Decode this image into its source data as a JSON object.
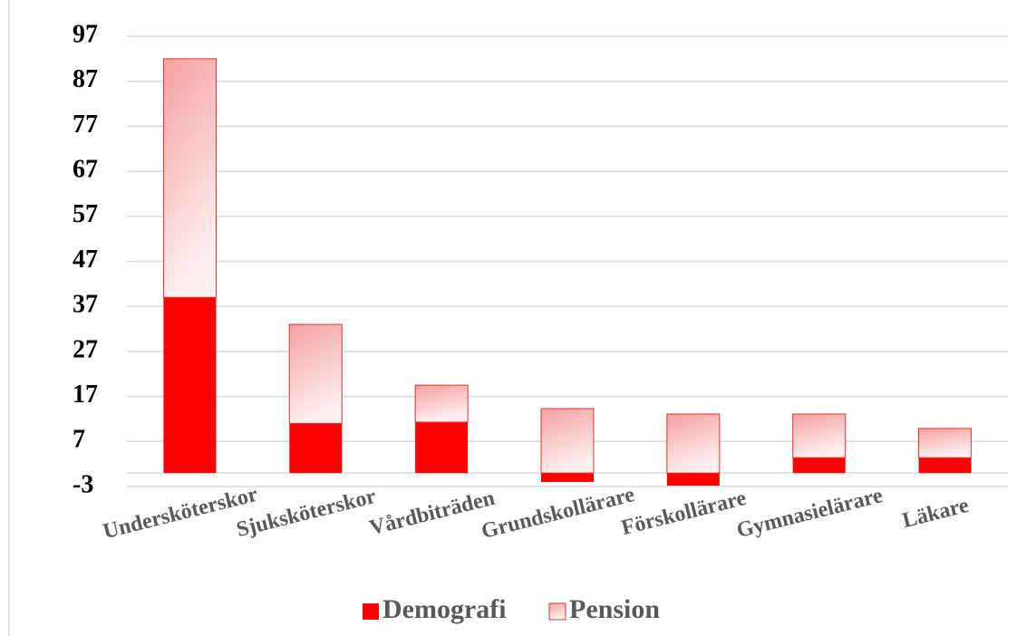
{
  "chart_data": {
    "type": "stacked_bar",
    "categories": [
      "Undersköterskor",
      "Sjuksköterskor",
      "Vårdbiträden",
      "Grundskollärare",
      "Förskollärare",
      "Gymnasielärare",
      "Läkare"
    ],
    "series": [
      {
        "name": "Demografi",
        "color": "#ff0000",
        "values": [
          39,
          11,
          11.3,
          -2,
          -2.8,
          3.4,
          3.4
        ]
      },
      {
        "name": "Pension",
        "color": "#f4a0a0",
        "values": [
          53,
          22,
          8.2,
          14.3,
          13.1,
          9.7,
          6.5
        ]
      }
    ],
    "ylim": [
      -3,
      97
    ],
    "yticks": [
      -3,
      7,
      17,
      27,
      37,
      47,
      57,
      67,
      77,
      87,
      97
    ],
    "grid": true,
    "legend": "bottom"
  }
}
